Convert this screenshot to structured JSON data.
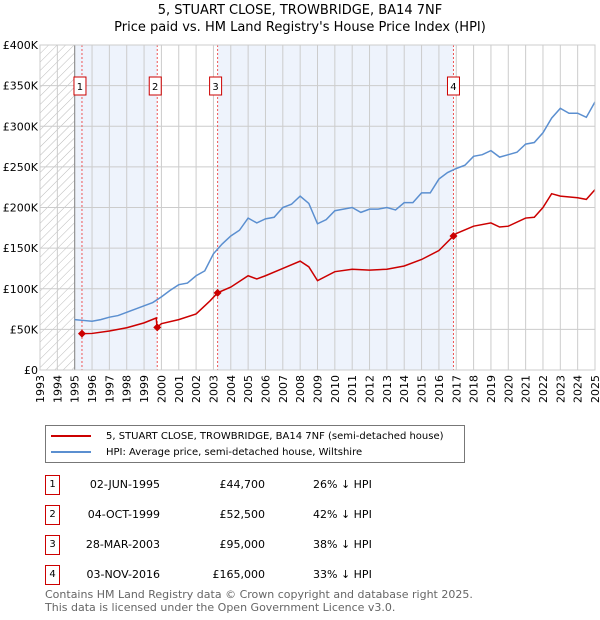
{
  "chart_data": {
    "type": "line",
    "title": "5, STUART CLOSE, TROWBRIDGE, BA14 7NF",
    "subtitle": "Price paid vs. HM Land Registry's House Price Index (HPI)",
    "xlim": [
      1993,
      2025
    ],
    "ylim": [
      0,
      400000
    ],
    "y_ticks": [
      {
        "v": 0,
        "label": "£0"
      },
      {
        "v": 50000,
        "label": "£50K"
      },
      {
        "v": 100000,
        "label": "£100K"
      },
      {
        "v": 150000,
        "label": "£150K"
      },
      {
        "v": 200000,
        "label": "£200K"
      },
      {
        "v": 250000,
        "label": "£250K"
      },
      {
        "v": 300000,
        "label": "£300K"
      },
      {
        "v": 350000,
        "label": "£350K"
      },
      {
        "v": 400000,
        "label": "£400K"
      }
    ],
    "x_ticks": [
      "1993",
      "1994",
      "1995",
      "1996",
      "1997",
      "1998",
      "1999",
      "2000",
      "2001",
      "2002",
      "2003",
      "2004",
      "2005",
      "2006",
      "2007",
      "2008",
      "2009",
      "2010",
      "2011",
      "2012",
      "2013",
      "2014",
      "2015",
      "2016",
      "2017",
      "2018",
      "2019",
      "2020",
      "2021",
      "2022",
      "2023",
      "2024",
      "2025"
    ],
    "grid": true,
    "series": [
      {
        "name": "5, STUART CLOSE, TROWBRIDGE, BA14 7NF (semi-detached house)",
        "color": "#cc0000",
        "x": [
          1995.42,
          1996,
          1997,
          1998,
          1999,
          1999.7,
          1999.75,
          2000,
          2001,
          2002,
          2002.8,
          2003.24,
          2004,
          2005,
          2005.5,
          2006,
          2007,
          2008,
          2008.5,
          2009,
          2010,
          2011,
          2012,
          2013,
          2014,
          2015,
          2016,
          2016.84,
          2017,
          2018,
          2019,
          2019.5,
          2020,
          2021,
          2021.5,
          2022,
          2022.5,
          2023,
          2024,
          2024.5,
          2025
        ],
        "y": [
          44700,
          45000,
          48000,
          52000,
          58000,
          64000,
          52500,
          57000,
          62000,
          69000,
          85000,
          95000,
          102000,
          116000,
          112000,
          116000,
          125000,
          134000,
          127000,
          110000,
          121000,
          124000,
          123000,
          124000,
          128000,
          136000,
          147000,
          165000,
          168000,
          177000,
          181000,
          176000,
          177000,
          187000,
          188000,
          200000,
          217000,
          214000,
          212000,
          210000,
          222000
        ]
      },
      {
        "name": "HPI: Average price, semi-detached house, Wiltshire",
        "color": "#5b8fd0",
        "x": [
          1995,
          1995.5,
          1996,
          1996.5,
          1997,
          1997.5,
          1998,
          1998.5,
          1999,
          1999.5,
          2000,
          2000.5,
          2001,
          2001.5,
          2002,
          2002.5,
          2003,
          2003.5,
          2004,
          2004.5,
          2005,
          2005.5,
          2006,
          2006.5,
          2007,
          2007.5,
          2008,
          2008.5,
          2009,
          2009.5,
          2010,
          2010.5,
          2011,
          2011.5,
          2012,
          2012.5,
          2013,
          2013.5,
          2014,
          2014.5,
          2015,
          2015.5,
          2016,
          2016.5,
          2017,
          2017.5,
          2018,
          2018.5,
          2019,
          2019.5,
          2020,
          2020.5,
          2021,
          2021.5,
          2022,
          2022.5,
          2023,
          2023.5,
          2024,
          2024.5,
          2025
        ],
        "y": [
          62000,
          61000,
          60000,
          62000,
          65000,
          67000,
          71000,
          75000,
          79000,
          83000,
          90000,
          98000,
          105000,
          107000,
          116000,
          122000,
          143000,
          155000,
          165000,
          172000,
          187000,
          181000,
          186000,
          188000,
          200000,
          204000,
          214000,
          205000,
          180000,
          185000,
          196000,
          198000,
          200000,
          194000,
          198000,
          198000,
          200000,
          197000,
          206000,
          206000,
          218000,
          218000,
          235000,
          243000,
          248000,
          252000,
          263000,
          265000,
          270000,
          262000,
          265000,
          268000,
          278000,
          280000,
          292000,
          310000,
          322000,
          316000,
          316000,
          311000,
          330000
        ]
      }
    ],
    "sales": [
      {
        "n": "1",
        "date": "02-JUN-1995",
        "x": 1995.42,
        "price": 44700,
        "price_label": "£44,700",
        "hpi": "26% ↓ HPI"
      },
      {
        "n": "2",
        "date": "04-OCT-1999",
        "x": 1999.76,
        "price": 52500,
        "price_label": "£52,500",
        "hpi": "42% ↓ HPI"
      },
      {
        "n": "3",
        "date": "28-MAR-2003",
        "x": 2003.24,
        "price": 95000,
        "price_label": "£95,000",
        "hpi": "38% ↓ HPI"
      },
      {
        "n": "4",
        "date": "03-NOV-2016",
        "x": 2016.84,
        "price": 165000,
        "price_label": "£165,000",
        "hpi": "33% ↓ HPI"
      }
    ],
    "legend_placement": "below"
  },
  "footer": {
    "line1": "Contains HM Land Registry data © Crown copyright and database right 2025.",
    "line2": "This data is licensed under the Open Government Licence v3.0."
  }
}
